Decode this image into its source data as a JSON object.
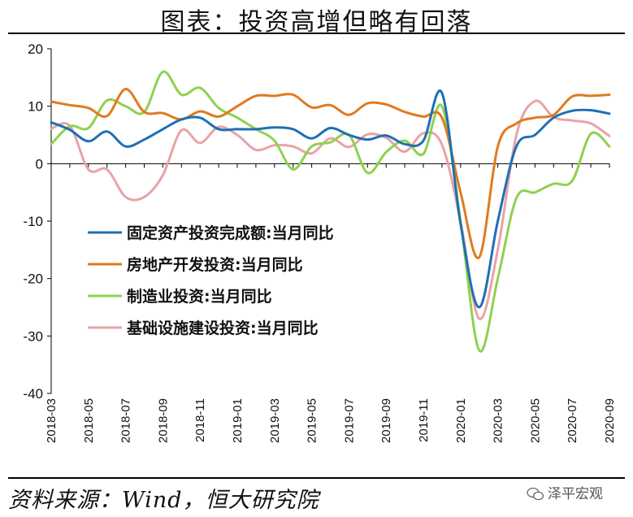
{
  "title": "图表：投资高增但略有回落",
  "source": "资料来源：Wind，恒大研究院",
  "watermark": "泽平宏观",
  "chart_data": {
    "type": "line",
    "ylim": [
      -40,
      20
    ],
    "yticks": [
      20,
      10,
      0,
      -10,
      -20,
      -30,
      -40
    ],
    "x": [
      "2018-03",
      "2018-04",
      "2018-05",
      "2018-06",
      "2018-07",
      "2018-08",
      "2018-09",
      "2018-10",
      "2018-11",
      "2018-12",
      "2019-01",
      "2019-02",
      "2019-03",
      "2019-04",
      "2019-05",
      "2019-06",
      "2019-07",
      "2019-08",
      "2019-09",
      "2019-10",
      "2019-11",
      "2019-12",
      "2020-01",
      "2020-02",
      "2020-03",
      "2020-04",
      "2020-05",
      "2020-06",
      "2020-07",
      "2020-08",
      "2020-09"
    ],
    "xtick_labels": [
      "2018-03",
      "2018-05",
      "2018-07",
      "2018-09",
      "2018-11",
      "2019-01",
      "2019-03",
      "2019-05",
      "2019-07",
      "2019-09",
      "2019-11",
      "2020-01",
      "2020-03",
      "2020-05",
      "2020-07",
      "2020-09"
    ],
    "legend_position": "left-center",
    "series": [
      {
        "name": "固定资产投资完成额:当月同比",
        "color": "#1F6FB4",
        "values": [
          7.2,
          5.9,
          3.9,
          5.6,
          3.0,
          4.2,
          6.0,
          7.7,
          8.0,
          6.0,
          6.0,
          6.0,
          6.3,
          6.0,
          4.4,
          6.2,
          5.0,
          4.2,
          4.9,
          3.4,
          4.0,
          12.3,
          -10.5,
          -25.0,
          -10.0,
          3.0,
          5.0,
          8.0,
          9.2,
          9.3,
          8.7
        ]
      },
      {
        "name": "房地产开发投资:当月同比",
        "color": "#E07A1F",
        "values": [
          10.8,
          10.2,
          9.7,
          8.3,
          13.0,
          9.0,
          8.8,
          7.7,
          9.1,
          8.2,
          10.0,
          11.8,
          11.8,
          12.0,
          9.8,
          10.2,
          8.5,
          10.5,
          10.3,
          9.0,
          8.2,
          8.0,
          -5.0,
          -16.3,
          3.0,
          7.0,
          8.0,
          8.5,
          11.7,
          11.8,
          12.0
        ]
      },
      {
        "name": "制造业投资:当月同比",
        "color": "#8FD14F",
        "values": [
          3.4,
          6.5,
          6.2,
          11.0,
          10.0,
          9.0,
          16.0,
          12.0,
          13.2,
          9.7,
          8.0,
          6.0,
          4.0,
          -1.0,
          3.0,
          3.7,
          5.0,
          -1.6,
          2.0,
          4.0,
          1.7,
          10.0,
          -10.0,
          -32.5,
          -20.0,
          -6.0,
          -5.0,
          -3.5,
          -3.0,
          5.2,
          3.0
        ]
      },
      {
        "name": "基础设施建设投资:当月同比",
        "color": "#E8A3A8",
        "values": [
          6.1,
          6.6,
          -1.0,
          -1.0,
          -5.8,
          -5.8,
          -2.0,
          5.8,
          3.6,
          6.4,
          5.0,
          2.4,
          3.2,
          3.0,
          1.8,
          4.4,
          2.9,
          5.1,
          4.5,
          2.1,
          5.3,
          3.3,
          -10.0,
          -27.0,
          -15.0,
          5.0,
          10.9,
          8.1,
          7.5,
          7.0,
          4.8
        ]
      }
    ]
  }
}
